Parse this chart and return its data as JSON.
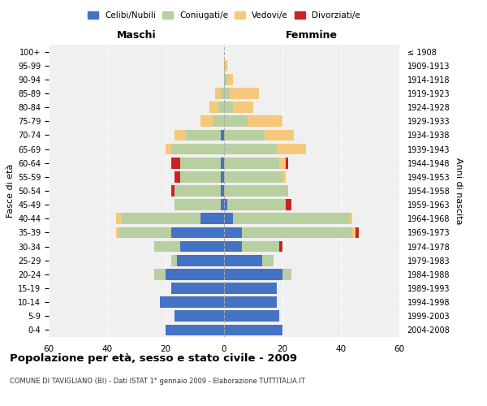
{
  "age_groups": [
    "0-4",
    "5-9",
    "10-14",
    "15-19",
    "20-24",
    "25-29",
    "30-34",
    "35-39",
    "40-44",
    "45-49",
    "50-54",
    "55-59",
    "60-64",
    "65-69",
    "70-74",
    "75-79",
    "80-84",
    "85-89",
    "90-94",
    "95-99",
    "100+"
  ],
  "birth_years": [
    "2004-2008",
    "1999-2003",
    "1994-1998",
    "1989-1993",
    "1984-1988",
    "1979-1983",
    "1974-1978",
    "1969-1973",
    "1964-1968",
    "1959-1963",
    "1954-1958",
    "1949-1953",
    "1944-1948",
    "1939-1943",
    "1934-1938",
    "1929-1933",
    "1924-1928",
    "1919-1923",
    "1914-1918",
    "1909-1913",
    "≤ 1908"
  ],
  "maschi": {
    "celibi": [
      20,
      17,
      22,
      18,
      20,
      16,
      15,
      18,
      8,
      1,
      1,
      1,
      1,
      0,
      1,
      0,
      0,
      0,
      0,
      0,
      0
    ],
    "coniugati": [
      0,
      0,
      0,
      0,
      4,
      2,
      9,
      18,
      27,
      16,
      16,
      14,
      14,
      18,
      12,
      4,
      2,
      1,
      0,
      0,
      0
    ],
    "vedovi": [
      0,
      0,
      0,
      0,
      0,
      0,
      0,
      1,
      2,
      0,
      0,
      0,
      0,
      2,
      4,
      4,
      3,
      2,
      0,
      0,
      0
    ],
    "divorziati": [
      0,
      0,
      0,
      0,
      0,
      0,
      0,
      0,
      0,
      0,
      1,
      2,
      3,
      0,
      0,
      0,
      0,
      0,
      0,
      0,
      0
    ]
  },
  "femmine": {
    "nubili": [
      20,
      19,
      18,
      18,
      20,
      13,
      6,
      6,
      3,
      1,
      0,
      0,
      0,
      0,
      0,
      0,
      0,
      0,
      0,
      0,
      0
    ],
    "coniugate": [
      0,
      0,
      0,
      0,
      3,
      4,
      13,
      38,
      40,
      20,
      22,
      20,
      19,
      18,
      14,
      8,
      3,
      2,
      1,
      0,
      0
    ],
    "vedove": [
      0,
      0,
      0,
      0,
      0,
      0,
      0,
      1,
      1,
      0,
      0,
      1,
      2,
      10,
      10,
      12,
      7,
      10,
      2,
      1,
      0
    ],
    "divorziate": [
      0,
      0,
      0,
      0,
      0,
      0,
      1,
      1,
      0,
      2,
      0,
      0,
      1,
      0,
      0,
      0,
      0,
      0,
      0,
      0,
      0
    ]
  },
  "colors": {
    "celibi": "#4472c4",
    "coniugati": "#b8cfa0",
    "vedovi": "#f5c87a",
    "divorziati": "#cc2222"
  },
  "xlim": 60,
  "title": "Popolazione per età, sesso e stato civile - 2009",
  "subtitle": "COMUNE DI TAVIGLIANO (BI) - Dati ISTAT 1° gennaio 2009 - Elaborazione TUTTITALIA.IT",
  "ylabel_left": "Fasce di età",
  "ylabel_right": "Anni di nascita",
  "xlabel_maschi": "Maschi",
  "xlabel_femmine": "Femmine",
  "legend_labels": [
    "Celibi/Nubili",
    "Coniugati/e",
    "Vedovi/e",
    "Divorziati/e"
  ],
  "bg_color": "#f0f0f0",
  "bar_height": 0.8
}
